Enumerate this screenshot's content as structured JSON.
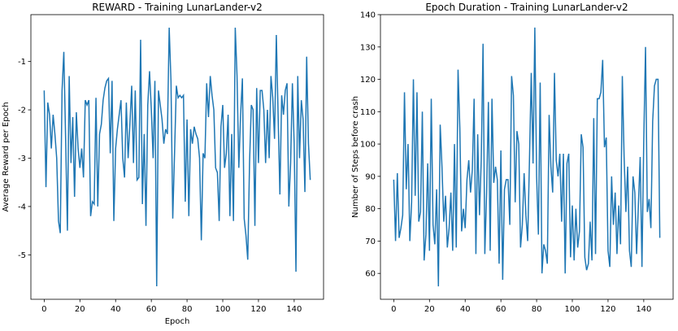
{
  "chart_data": [
    {
      "type": "line",
      "title": "REWARD - Training LunarLander-v2",
      "xlabel": "Epoch",
      "ylabel": "Average Reward per Epoch",
      "xlim": [
        -7.45,
        156.45
      ],
      "ylim": [
        -5.92,
        -0.03
      ],
      "xticks": [
        0,
        20,
        40,
        60,
        80,
        100,
        120,
        140
      ],
      "yticks": [
        -5,
        -4,
        -3,
        -2,
        -1
      ],
      "x": [
        0,
        1,
        2,
        3,
        4,
        5,
        6,
        7,
        8,
        9,
        10,
        11,
        12,
        13,
        14,
        15,
        16,
        17,
        18,
        19,
        20,
        21,
        22,
        23,
        24,
        25,
        26,
        27,
        28,
        29,
        30,
        31,
        32,
        33,
        34,
        35,
        36,
        37,
        38,
        39,
        40,
        41,
        42,
        43,
        44,
        45,
        46,
        47,
        48,
        49,
        50,
        51,
        52,
        53,
        54,
        55,
        56,
        57,
        58,
        59,
        60,
        61,
        62,
        63,
        64,
        65,
        66,
        67,
        68,
        69,
        70,
        71,
        72,
        73,
        74,
        75,
        76,
        77,
        78,
        79,
        80,
        81,
        82,
        83,
        84,
        85,
        86,
        87,
        88,
        89,
        90,
        91,
        92,
        93,
        94,
        95,
        96,
        97,
        98,
        99,
        100,
        101,
        102,
        103,
        104,
        105,
        106,
        107,
        108,
        109,
        110,
        111,
        112,
        113,
        114,
        115,
        116,
        117,
        118,
        119,
        120,
        121,
        122,
        123,
        124,
        125,
        126,
        127,
        128,
        129,
        130,
        131,
        132,
        133,
        134,
        135,
        136,
        137,
        138,
        139,
        140,
        141,
        142,
        143,
        144,
        145,
        146,
        147,
        148,
        149
      ],
      "series": [
        {
          "color": "#1f77b4",
          "values": [
            -1.6,
            -3.6,
            -1.85,
            -2.1,
            -2.8,
            -2.1,
            -2.5,
            -3.0,
            -4.3,
            -4.55,
            -1.6,
            -0.8,
            -2.6,
            -4.5,
            -1.3,
            -3.1,
            -2.15,
            -3.8,
            -2.05,
            -2.8,
            -3.2,
            -2.8,
            -3.4,
            -1.8,
            -1.9,
            -1.8,
            -4.2,
            -3.9,
            -3.95,
            -1.75,
            -4.0,
            -2.5,
            -2.3,
            -1.8,
            -1.55,
            -1.4,
            -1.35,
            -2.9,
            -1.4,
            -4.3,
            -2.8,
            -2.4,
            -2.1,
            -1.8,
            -3.0,
            -3.4,
            -1.85,
            -3.0,
            -2.3,
            -1.5,
            -3.1,
            -1.6,
            -3.45,
            -3.4,
            -0.55,
            -3.95,
            -2.5,
            -4.4,
            -1.9,
            -1.2,
            -2.0,
            -3.0,
            -1.4,
            -5.65,
            -1.6,
            -1.9,
            -2.2,
            -2.7,
            -2.4,
            -2.5,
            -0.3,
            -1.4,
            -4.25,
            -2.9,
            -1.5,
            -1.75,
            -1.7,
            -1.75,
            -1.7,
            -3.9,
            -2.2,
            -4.2,
            -2.4,
            -2.7,
            -2.35,
            -2.5,
            -2.6,
            -3.0,
            -4.7,
            -2.9,
            -3.0,
            -1.45,
            -2.15,
            -1.3,
            -1.7,
            -2.0,
            -3.2,
            -3.3,
            -4.3,
            -2.35,
            -1.9,
            -3.2,
            -2.9,
            -2.1,
            -4.2,
            -2.5,
            -4.3,
            -0.3,
            -1.3,
            -3.2,
            -2.1,
            -1.35,
            -4.25,
            -4.6,
            -5.1,
            -3.1,
            -1.9,
            -2.0,
            -4.4,
            -1.55,
            -3.1,
            -1.6,
            -1.6,
            -2.0,
            -3.1,
            -2.0,
            -3.0,
            -1.3,
            -1.75,
            -2.6,
            -0.45,
            -2.1,
            -3.75,
            -1.7,
            -2.1,
            -1.6,
            -1.45,
            -4.0,
            -3.1,
            -1.45,
            -2.7,
            -5.35,
            -1.3,
            -3.0,
            -1.8,
            -2.2,
            -3.7,
            -0.9,
            -2.7,
            -3.45
          ]
        }
      ]
    },
    {
      "type": "line",
      "title": "Epoch Duration - Training LunarLander-v2",
      "ylabel": "Number of Steps before crash",
      "xlim": [
        -7.45,
        156.45
      ],
      "ylim": [
        52,
        140
      ],
      "xticks": [
        0,
        20,
        40,
        60,
        80,
        100,
        120,
        140
      ],
      "yticks": [
        60,
        70,
        80,
        90,
        100,
        110,
        120,
        130,
        140
      ],
      "x": [
        0,
        1,
        2,
        3,
        4,
        5,
        6,
        7,
        8,
        9,
        10,
        11,
        12,
        13,
        14,
        15,
        16,
        17,
        18,
        19,
        20,
        21,
        22,
        23,
        24,
        25,
        26,
        27,
        28,
        29,
        30,
        31,
        32,
        33,
        34,
        35,
        36,
        37,
        38,
        39,
        40,
        41,
        42,
        43,
        44,
        45,
        46,
        47,
        48,
        49,
        50,
        51,
        52,
        53,
        54,
        55,
        56,
        57,
        58,
        59,
        60,
        61,
        62,
        63,
        64,
        65,
        66,
        67,
        68,
        69,
        70,
        71,
        72,
        73,
        74,
        75,
        76,
        77,
        78,
        79,
        80,
        81,
        82,
        83,
        84,
        85,
        86,
        87,
        88,
        89,
        90,
        91,
        92,
        93,
        94,
        95,
        96,
        97,
        98,
        99,
        100,
        101,
        102,
        103,
        104,
        105,
        106,
        107,
        108,
        109,
        110,
        111,
        112,
        113,
        114,
        115,
        116,
        117,
        118,
        119,
        120,
        121,
        122,
        123,
        124,
        125,
        126,
        127,
        128,
        129,
        130,
        131,
        132,
        133,
        134,
        135,
        136,
        137,
        138,
        139,
        140,
        141,
        142,
        143,
        144,
        145,
        146,
        147,
        148,
        149
      ],
      "series": [
        {
          "color": "#1f77b4",
          "values": [
            89,
            70,
            91,
            71,
            74,
            78,
            116,
            86,
            100,
            70,
            82,
            120,
            84,
            116,
            76,
            79,
            110,
            64,
            72,
            94,
            67,
            114,
            75,
            69,
            86,
            56,
            106,
            93,
            76,
            84,
            68,
            74,
            85,
            67,
            100,
            68,
            123,
            105,
            73,
            80,
            74,
            89,
            95,
            85,
            92,
            114,
            66,
            103,
            78,
            95,
            131,
            66,
            85,
            113,
            67,
            114,
            88,
            93,
            89,
            63,
            98,
            58,
            86,
            89,
            89,
            75,
            121,
            115,
            82,
            104,
            100,
            68,
            75,
            91,
            78,
            70,
            95,
            122,
            94,
            136,
            90,
            72,
            119,
            60,
            69,
            67,
            63,
            109,
            93,
            85,
            122,
            95,
            90,
            97,
            76,
            97,
            60,
            94,
            97,
            65,
            81,
            64,
            80,
            68,
            73,
            103,
            99,
            65,
            61,
            63,
            76,
            64,
            108,
            66,
            114,
            114,
            116,
            126,
            99,
            102,
            67,
            62,
            90,
            75,
            85,
            66,
            81,
            69,
            121,
            96,
            79,
            93,
            67,
            62,
            90,
            85,
            66,
            81,
            96,
            62,
            101,
            130,
            79,
            83,
            74,
            107,
            118,
            120,
            120,
            71
          ]
        }
      ]
    }
  ]
}
